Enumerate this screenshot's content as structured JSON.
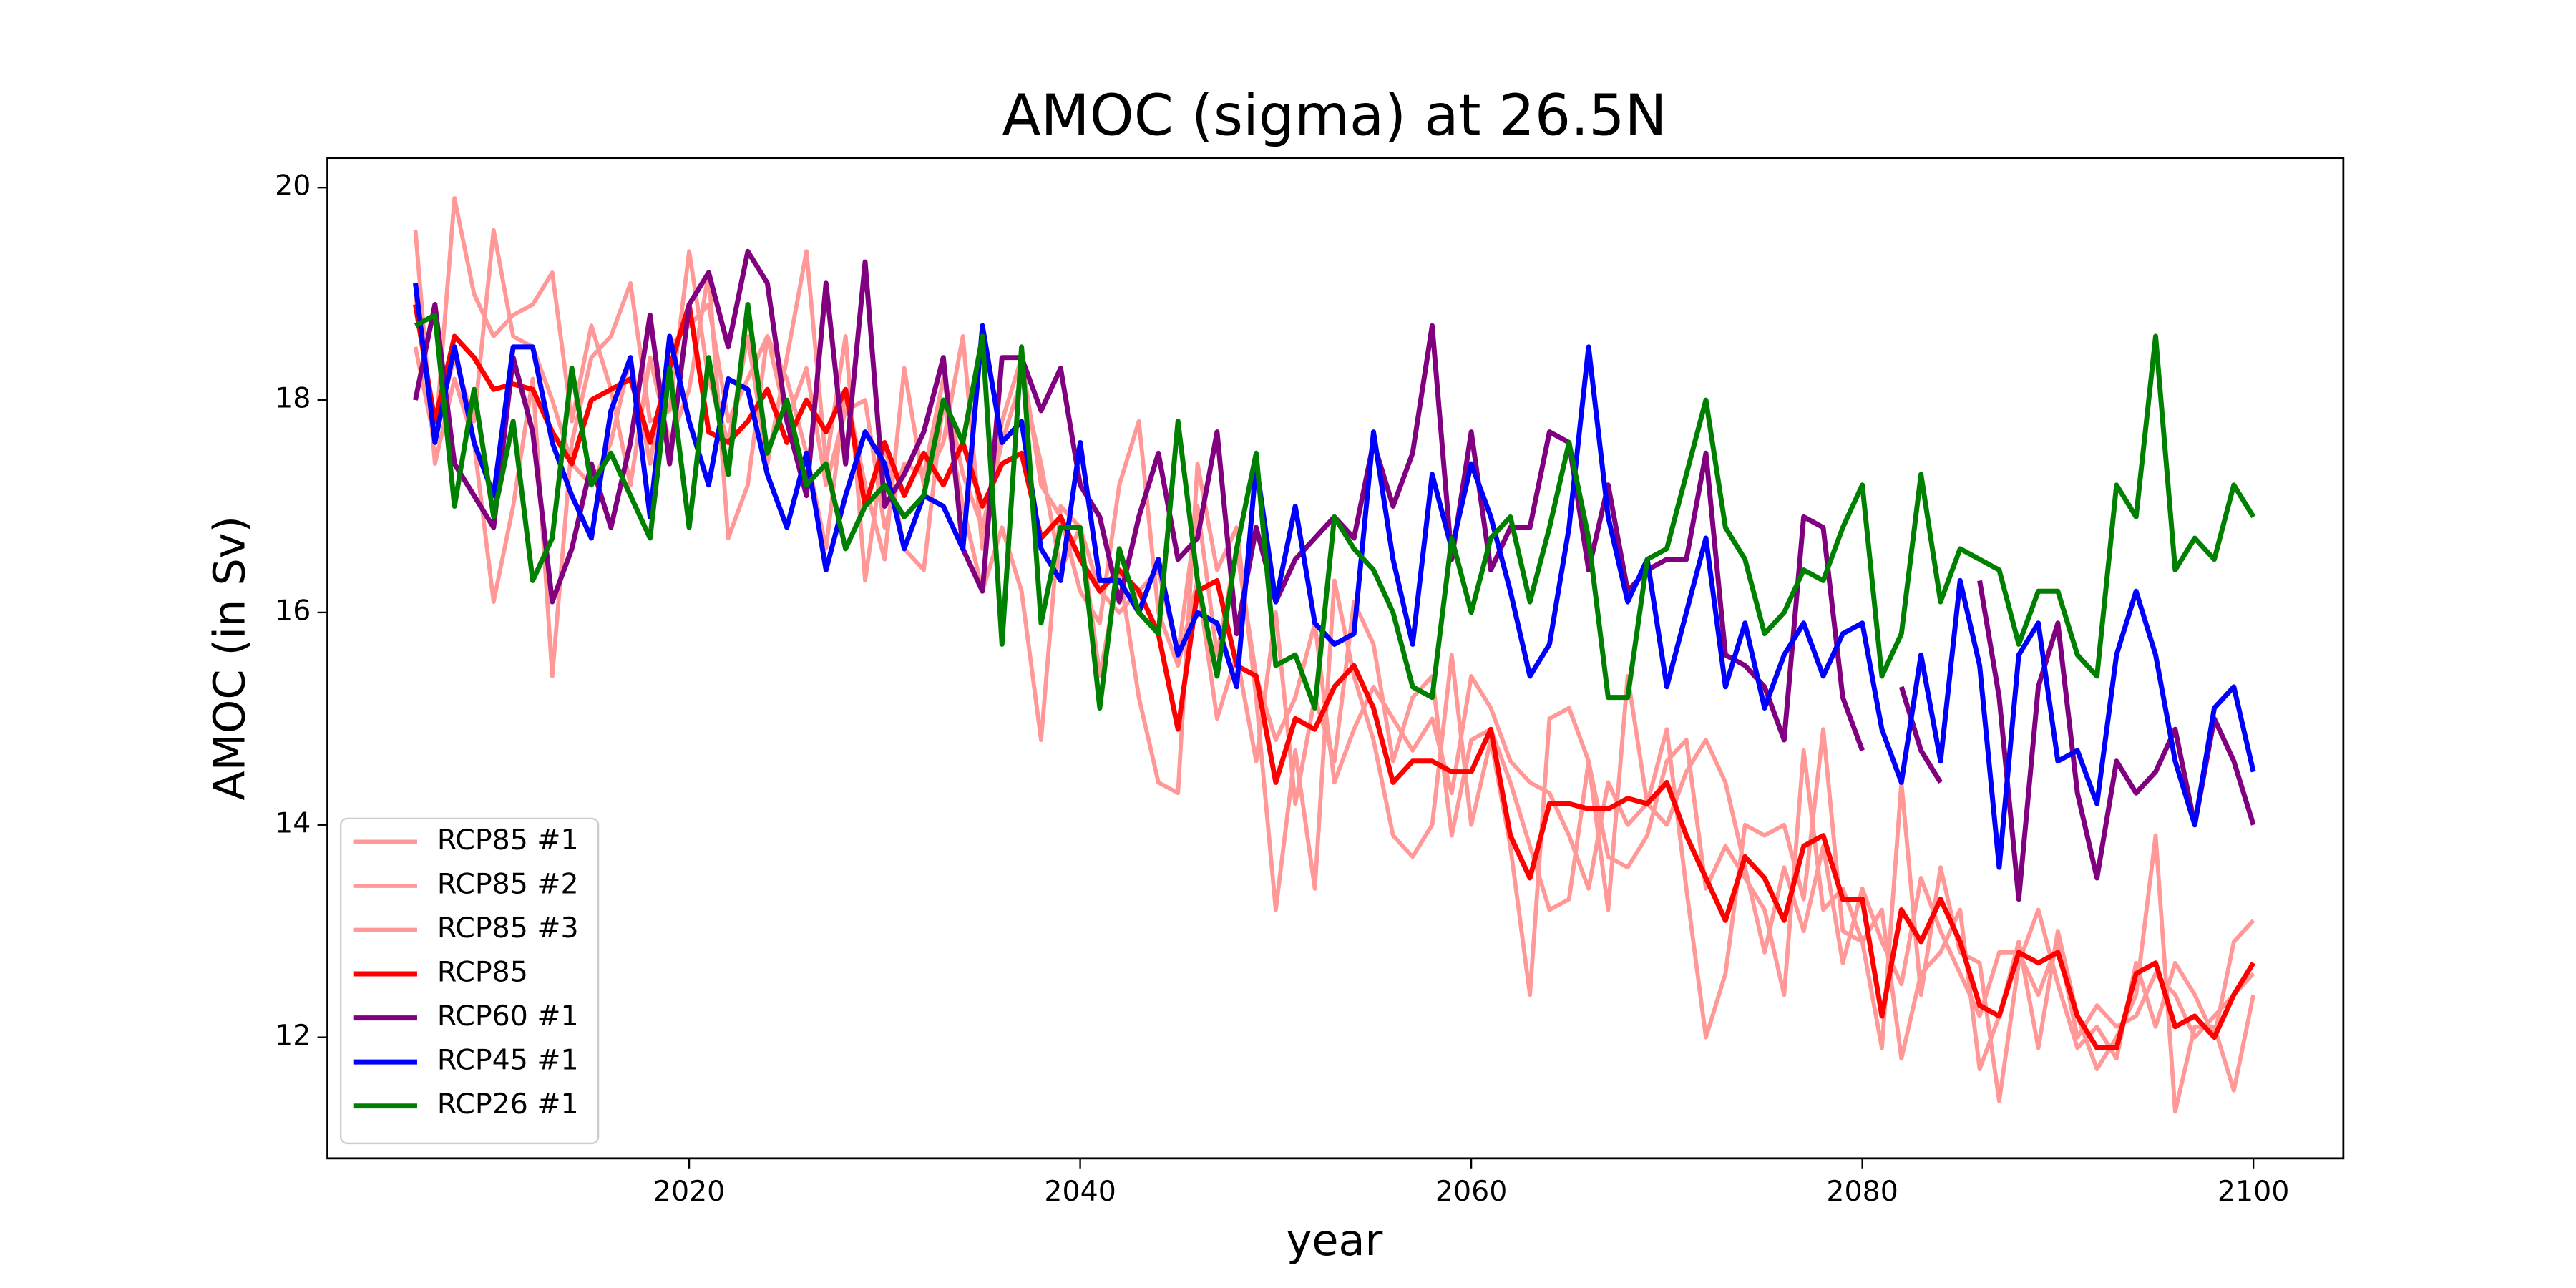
{
  "chart_data": {
    "type": "line",
    "title": "AMOC (sigma) at 26.5N",
    "xlabel": "year",
    "ylabel": "AMOC (in Sv)",
    "x": [
      2006,
      2007,
      2008,
      2009,
      2010,
      2011,
      2012,
      2013,
      2014,
      2015,
      2016,
      2017,
      2018,
      2019,
      2020,
      2021,
      2022,
      2023,
      2024,
      2025,
      2026,
      2027,
      2028,
      2029,
      2030,
      2031,
      2032,
      2033,
      2034,
      2035,
      2036,
      2037,
      2038,
      2039,
      2040,
      2041,
      2042,
      2043,
      2044,
      2045,
      2046,
      2047,
      2048,
      2049,
      2050,
      2051,
      2052,
      2053,
      2054,
      2055,
      2056,
      2057,
      2058,
      2059,
      2060,
      2061,
      2062,
      2063,
      2064,
      2065,
      2066,
      2067,
      2068,
      2069,
      2070,
      2071,
      2072,
      2073,
      2074,
      2075,
      2076,
      2077,
      2078,
      2079,
      2080,
      2081,
      2082,
      2083,
      2084,
      2085,
      2086,
      2087,
      2088,
      2089,
      2090,
      2091,
      2092,
      2093,
      2094,
      2095,
      2096,
      2097,
      2098,
      2099,
      2100
    ],
    "xlim": [
      2001.5,
      2104.6
    ],
    "ylim": [
      10.86,
      20.28
    ],
    "xticks": [
      2020,
      2040,
      2060,
      2080,
      2100
    ],
    "yticks": [
      12,
      14,
      16,
      18,
      20
    ],
    "legend": "lower left",
    "series": [
      {
        "name": "RCP85 #1",
        "color": "#ff9896",
        "width": 2.5,
        "values": [
          19.6,
          17.4,
          18.2,
          17.6,
          16.1,
          17.0,
          18.2,
          15.4,
          17.6,
          18.4,
          18.6,
          19.1,
          17.8,
          17.9,
          19.4,
          18.2,
          17.6,
          18.6,
          17.4,
          18.4,
          19.4,
          17.4,
          18.6,
          16.3,
          17.6,
          16.6,
          16.4,
          18.0,
          17.0,
          16.2,
          16.8,
          16.2,
          14.8,
          17.0,
          16.8,
          15.4,
          16.4,
          15.2,
          14.4,
          14.3,
          17.4,
          16.4,
          16.8,
          15.2,
          13.2,
          14.7,
          13.4,
          16.3,
          15.4,
          14.8,
          13.9,
          13.7,
          14.0,
          15.6,
          14.0,
          14.8,
          13.8,
          12.4,
          15.0,
          15.1,
          14.6,
          13.2,
          15.4,
          14.2,
          14.9,
          13.4,
          12.0,
          12.6,
          14.0,
          13.9,
          14.0,
          13.3,
          14.9,
          13.0,
          12.9,
          13.2,
          11.8,
          12.6,
          12.8,
          13.2,
          11.7,
          12.2,
          12.9,
          11.9,
          13.0,
          12.2,
          11.7,
          12.0,
          12.4,
          13.9,
          11.3,
          12.1,
          12.1,
          11.5,
          12.4
        ]
      },
      {
        "name": "RCP85 #2",
        "color": "#ff9896",
        "width": 2.5,
        "values": [
          18.5,
          17.6,
          19.9,
          19.0,
          18.6,
          18.8,
          18.9,
          19.2,
          17.8,
          18.7,
          18.1,
          17.2,
          18.4,
          17.6,
          18.1,
          19.2,
          16.7,
          17.2,
          18.6,
          18.2,
          17.5,
          16.6,
          18.1,
          17.2,
          16.5,
          18.3,
          17.2,
          17.6,
          18.6,
          16.6,
          17.8,
          18.4,
          17.2,
          16.9,
          16.2,
          15.9,
          17.2,
          17.8,
          16.0,
          15.5,
          16.3,
          15.0,
          15.6,
          14.6,
          16.0,
          14.2,
          15.2,
          14.6,
          16.1,
          15.7,
          14.6,
          15.2,
          15.4,
          13.9,
          14.8,
          14.9,
          14.4,
          13.8,
          13.2,
          13.3,
          14.6,
          13.7,
          13.6,
          13.9,
          14.6,
          14.8,
          13.4,
          13.8,
          13.5,
          13.2,
          12.4,
          14.7,
          13.2,
          13.4,
          12.9,
          11.9,
          14.4,
          12.4,
          13.6,
          12.8,
          12.7,
          11.4,
          12.7,
          13.2,
          12.5,
          11.9,
          12.1,
          11.8,
          12.7,
          12.1,
          12.7,
          12.4,
          12.0,
          12.9,
          13.1
        ]
      },
      {
        "name": "RCP85 #3",
        "color": "#ff9896",
        "width": 2.5,
        "values": [
          19.0,
          17.7,
          18.4,
          17.8,
          19.6,
          18.6,
          18.5,
          18.0,
          17.4,
          17.2,
          17.6,
          18.4,
          17.4,
          18.5,
          18.7,
          18.9,
          17.8,
          18.2,
          18.6,
          17.8,
          18.3,
          17.2,
          17.9,
          18.0,
          16.8,
          17.4,
          17.3,
          18.2,
          17.3,
          16.8,
          17.6,
          18.2,
          17.4,
          16.4,
          16.8,
          16.2,
          16.0,
          16.2,
          16.4,
          15.6,
          17.0,
          15.6,
          16.6,
          15.4,
          14.8,
          15.2,
          15.9,
          14.4,
          14.9,
          15.3,
          15.0,
          14.7,
          15.0,
          14.3,
          15.4,
          15.1,
          14.6,
          14.4,
          14.3,
          13.9,
          13.4,
          14.4,
          14.0,
          14.2,
          14.0,
          14.5,
          14.8,
          14.4,
          13.6,
          12.8,
          13.6,
          13.0,
          13.8,
          12.7,
          13.4,
          12.9,
          12.5,
          13.5,
          13.0,
          12.6,
          12.2,
          12.8,
          12.8,
          12.4,
          12.9,
          12.0,
          12.3,
          12.1,
          12.2,
          12.6,
          12.4,
          12.0,
          12.2,
          12.4,
          12.6
        ]
      },
      {
        "name": "RCP85",
        "color": "#ff0000",
        "width": 3,
        "values": [
          18.9,
          17.8,
          18.6,
          18.4,
          18.1,
          18.15,
          18.1,
          17.7,
          17.4,
          18.0,
          18.1,
          18.2,
          17.6,
          18.3,
          18.9,
          17.7,
          17.6,
          17.8,
          18.1,
          17.6,
          18.0,
          17.7,
          18.1,
          17.0,
          17.6,
          17.1,
          17.5,
          17.2,
          17.6,
          17.0,
          17.4,
          17.5,
          16.7,
          16.9,
          16.5,
          16.2,
          16.4,
          16.2,
          15.8,
          14.9,
          16.2,
          16.3,
          15.5,
          15.4,
          14.4,
          15.0,
          14.9,
          15.3,
          15.5,
          15.1,
          14.4,
          14.6,
          14.6,
          14.5,
          14.5,
          14.9,
          13.9,
          13.5,
          14.2,
          14.2,
          14.15,
          14.15,
          14.25,
          14.2,
          14.4,
          13.9,
          13.5,
          13.1,
          13.7,
          13.5,
          13.1,
          13.8,
          13.9,
          13.3,
          13.3,
          12.2,
          13.2,
          12.9,
          13.3,
          12.9,
          12.3,
          12.2,
          12.8,
          12.7,
          12.8,
          12.2,
          11.9,
          11.9,
          12.6,
          12.7,
          12.1,
          12.2,
          12.0,
          12.4,
          12.7
        ]
      },
      {
        "name": "RCP60 #1",
        "color": "#800080",
        "width": 3,
        "values": [
          18.0,
          18.9,
          17.4,
          17.1,
          16.8,
          18.4,
          17.7,
          16.1,
          16.6,
          17.4,
          16.8,
          17.6,
          18.8,
          17.4,
          18.9,
          19.2,
          18.5,
          19.4,
          19.1,
          17.8,
          17.1,
          19.1,
          17.4,
          19.3,
          17.0,
          17.3,
          17.7,
          18.4,
          16.6,
          16.2,
          18.4,
          18.4,
          17.9,
          18.3,
          17.2,
          16.9,
          16.1,
          16.9,
          17.5,
          16.5,
          16.7,
          17.7,
          15.8,
          16.8,
          16.1,
          16.5,
          16.7,
          16.9,
          16.7,
          17.6,
          17.0,
          17.5,
          18.7,
          16.5,
          17.7,
          16.4,
          16.8,
          16.8,
          17.7,
          17.6,
          16.4,
          17.2,
          16.2,
          16.4,
          16.5,
          16.5,
          17.5,
          15.6,
          15.5,
          15.3,
          14.8,
          16.9,
          16.8,
          15.2,
          14.7,
          null,
          15.3,
          14.7,
          14.4,
          null,
          16.3,
          15.2,
          13.3,
          15.3,
          15.9,
          14.3,
          13.5,
          14.6,
          14.3,
          14.5,
          14.9,
          14.0,
          15.0,
          14.6,
          14.0
        ]
      },
      {
        "name": "RCP45 #1",
        "color": "#0000ff",
        "width": 3,
        "values": [
          19.1,
          17.6,
          18.5,
          17.6,
          17.1,
          18.5,
          18.5,
          17.6,
          17.1,
          16.7,
          17.9,
          18.4,
          16.9,
          18.6,
          17.8,
          17.2,
          18.2,
          18.1,
          17.3,
          16.8,
          17.5,
          16.4,
          17.1,
          17.7,
          17.4,
          16.6,
          17.1,
          17.0,
          16.6,
          18.7,
          17.6,
          17.8,
          16.6,
          16.3,
          17.6,
          16.3,
          16.3,
          16.0,
          16.5,
          15.6,
          16.0,
          15.9,
          15.3,
          17.4,
          16.1,
          17.0,
          15.9,
          15.7,
          15.8,
          17.7,
          16.5,
          15.7,
          17.3,
          16.6,
          17.4,
          16.9,
          16.2,
          15.4,
          15.7,
          16.8,
          18.5,
          16.9,
          16.1,
          16.5,
          15.3,
          16.0,
          16.7,
          15.3,
          15.9,
          15.1,
          15.6,
          15.9,
          15.4,
          15.8,
          15.9,
          14.9,
          14.4,
          15.6,
          14.6,
          16.3,
          15.5,
          13.6,
          15.6,
          15.9,
          14.6,
          14.7,
          14.2,
          15.6,
          16.2,
          15.6,
          14.6,
          14.0,
          15.1,
          15.3,
          14.5
        ]
      },
      {
        "name": "RCP26 #1",
        "color": "#008000",
        "width": 3,
        "values": [
          18.7,
          18.8,
          17.0,
          18.1,
          16.9,
          17.8,
          16.3,
          16.7,
          18.3,
          17.2,
          17.5,
          17.1,
          16.7,
          18.3,
          16.8,
          18.4,
          17.3,
          18.9,
          17.5,
          18.0,
          17.2,
          17.4,
          16.6,
          17.0,
          17.2,
          16.9,
          17.1,
          18.0,
          17.6,
          18.6,
          15.7,
          18.5,
          15.9,
          16.8,
          16.8,
          15.1,
          16.6,
          16.0,
          15.8,
          17.8,
          16.3,
          15.4,
          16.6,
          17.5,
          15.5,
          15.6,
          15.1,
          16.9,
          16.6,
          16.4,
          16.0,
          15.3,
          15.2,
          16.7,
          16.0,
          16.7,
          16.9,
          16.1,
          16.8,
          17.6,
          16.7,
          15.2,
          15.2,
          16.5,
          16.6,
          17.3,
          18.0,
          16.8,
          16.5,
          15.8,
          16.0,
          16.4,
          16.3,
          16.8,
          17.2,
          15.4,
          15.8,
          17.3,
          16.1,
          16.6,
          16.5,
          16.4,
          15.7,
          16.2,
          16.2,
          15.6,
          15.4,
          17.2,
          16.9,
          18.6,
          16.4,
          16.7,
          16.5,
          17.2,
          16.9
        ]
      }
    ]
  }
}
